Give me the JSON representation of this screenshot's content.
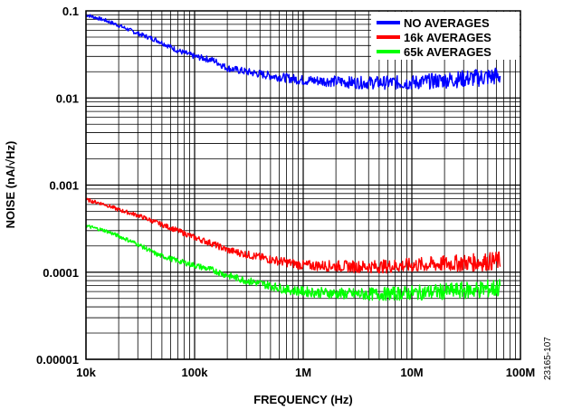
{
  "figure_id": "23165-107",
  "chart_data": {
    "type": "line",
    "xlabel": "FREQUENCY (Hz)",
    "ylabel": "NOISE (nA/√Hz)",
    "xscale": "log",
    "yscale": "log",
    "xlim": [
      10000,
      100000000
    ],
    "ylim": [
      1e-05,
      0.1
    ],
    "grid": true,
    "legend_position": "top-right",
    "x_ticks": [
      {
        "value": 10000,
        "label": "10k"
      },
      {
        "value": 100000,
        "label": "100k"
      },
      {
        "value": 1000000,
        "label": "1M"
      },
      {
        "value": 10000000,
        "label": "10M"
      },
      {
        "value": 100000000,
        "label": "100M"
      }
    ],
    "y_ticks": [
      {
        "value": 0.1,
        "label": "0.1"
      },
      {
        "value": 0.01,
        "label": "0.01"
      },
      {
        "value": 0.001,
        "label": "0.001"
      },
      {
        "value": 0.0001,
        "label": "0.0001"
      },
      {
        "value": 1e-05,
        "label": "0.00001"
      }
    ],
    "series": [
      {
        "name": "NO AVERAGES",
        "color": "#0000ff",
        "x": [
          10000,
          15000,
          20000,
          30000,
          45000,
          70000,
          100000,
          150000,
          200000,
          300000,
          500000,
          700000,
          1000000,
          2000000,
          3000000,
          5000000,
          10000000,
          20000000,
          40000000,
          65000000
        ],
        "y": [
          0.09,
          0.078,
          0.068,
          0.055,
          0.046,
          0.035,
          0.03,
          0.027,
          0.022,
          0.02,
          0.018,
          0.017,
          0.016,
          0.0155,
          0.015,
          0.015,
          0.015,
          0.016,
          0.017,
          0.018
        ]
      },
      {
        "name": "16k AVERAGES",
        "color": "#ff0000",
        "x": [
          10000,
          15000,
          20000,
          30000,
          45000,
          70000,
          100000,
          150000,
          200000,
          300000,
          500000,
          700000,
          1000000,
          2000000,
          3000000,
          5000000,
          10000000,
          20000000,
          40000000,
          65000000
        ],
        "y": [
          0.00068,
          0.0006,
          0.00052,
          0.00045,
          0.00037,
          0.0003,
          0.00025,
          0.00021,
          0.00018,
          0.00016,
          0.00014,
          0.00013,
          0.00012,
          0.000118,
          0.000116,
          0.000116,
          0.00012,
          0.000125,
          0.00013,
          0.000135
        ]
      },
      {
        "name": "65k AVERAGES",
        "color": "#00ff00",
        "x": [
          10000,
          15000,
          20000,
          30000,
          45000,
          70000,
          100000,
          150000,
          200000,
          300000,
          500000,
          700000,
          1000000,
          2000000,
          3000000,
          5000000,
          10000000,
          20000000,
          40000000,
          65000000
        ],
        "y": [
          0.00034,
          0.0003,
          0.00026,
          0.00021,
          0.00016,
          0.000135,
          0.00012,
          0.000105,
          9.2e-05,
          8e-05,
          7e-05,
          6.3e-05,
          6e-05,
          5.7e-05,
          5.6e-05,
          5.6e-05,
          5.8e-05,
          6e-05,
          6.3e-05,
          6.6e-05
        ]
      }
    ]
  }
}
